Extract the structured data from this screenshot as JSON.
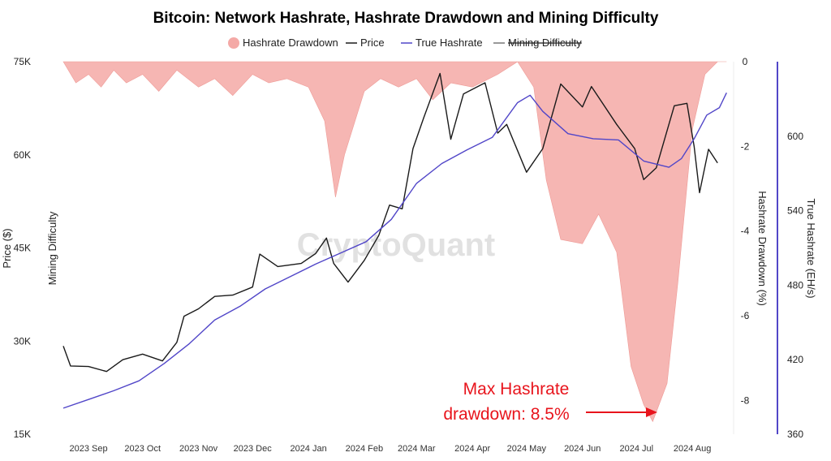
{
  "chart_data": {
    "type": "line",
    "title": "Bitcoin: Network Hashrate, Hashrate Drawdown and Mining Difficulty",
    "watermark": "CryptoQuant",
    "legend": [
      {
        "name": "Hashrate Drawdown",
        "color": "#f4a9a6",
        "shape": "dot"
      },
      {
        "name": "Price",
        "color": "#1a1a1a",
        "shape": "line"
      },
      {
        "name": "True Hashrate",
        "color": "#5146c8",
        "shape": "line"
      },
      {
        "name": "Mining Difficulty",
        "color": "#777777",
        "shape": "line",
        "struck": true
      }
    ],
    "axes": {
      "left_outer": {
        "label": "Price ($)",
        "ticks": [
          "75K",
          "60K",
          "45K",
          "30K",
          "15K"
        ],
        "range": [
          15000,
          75000
        ]
      },
      "left_inner": {
        "label": "Mining Difficulty"
      },
      "right_inner": {
        "label": "Hashrate Drawdown (%)",
        "ticks": [
          "0",
          "-2",
          "-4",
          "-6",
          "-8"
        ],
        "range": [
          -8.8,
          0
        ]
      },
      "right_outer": {
        "label": "True Hashrate (EH/s)",
        "ticks": [
          "600",
          "540",
          "480",
          "420",
          "360"
        ],
        "range": [
          360,
          660
        ]
      },
      "x": {
        "ticks": [
          "2023 Sep",
          "2023 Oct",
          "2023 Nov",
          "2023 Dec",
          "2024 Jan",
          "2024 Feb",
          "2024 Mar",
          "2024 Apr",
          "2024 May",
          "2024 Jun",
          "2024 Jul",
          "2024 Aug"
        ],
        "range": [
          "2023-08-18",
          "2024-08-23"
        ]
      }
    },
    "price": [
      [
        "2023-08-18",
        29200
      ],
      [
        "2023-08-22",
        26000
      ],
      [
        "2023-09-01",
        25900
      ],
      [
        "2023-09-11",
        25100
      ],
      [
        "2023-09-20",
        27000
      ],
      [
        "2023-10-01",
        27900
      ],
      [
        "2023-10-12",
        26800
      ],
      [
        "2023-10-20",
        29800
      ],
      [
        "2023-10-24",
        34000
      ],
      [
        "2023-11-01",
        35200
      ],
      [
        "2023-11-10",
        37200
      ],
      [
        "2023-11-20",
        37400
      ],
      [
        "2023-12-01",
        38700
      ],
      [
        "2023-12-05",
        44000
      ],
      [
        "2023-12-15",
        42000
      ],
      [
        "2023-12-28",
        42500
      ],
      [
        "2024-01-05",
        44100
      ],
      [
        "2024-01-11",
        46600
      ],
      [
        "2024-01-15",
        42500
      ],
      [
        "2024-01-23",
        39500
      ],
      [
        "2024-02-01",
        43000
      ],
      [
        "2024-02-09",
        47000
      ],
      [
        "2024-02-15",
        51900
      ],
      [
        "2024-02-22",
        51300
      ],
      [
        "2024-02-28",
        61000
      ],
      [
        "2024-03-05",
        66000
      ],
      [
        "2024-03-14",
        73100
      ],
      [
        "2024-03-20",
        62500
      ],
      [
        "2024-03-27",
        69800
      ],
      [
        "2024-04-08",
        71600
      ],
      [
        "2024-04-15",
        63500
      ],
      [
        "2024-04-20",
        64900
      ],
      [
        "2024-05-01",
        57200
      ],
      [
        "2024-05-10",
        61000
      ],
      [
        "2024-05-20",
        71400
      ],
      [
        "2024-06-01",
        67700
      ],
      [
        "2024-06-06",
        71000
      ],
      [
        "2024-06-20",
        64900
      ],
      [
        "2024-06-30",
        61000
      ],
      [
        "2024-07-05",
        56000
      ],
      [
        "2024-07-12",
        57900
      ],
      [
        "2024-07-22",
        67900
      ],
      [
        "2024-07-29",
        68300
      ],
      [
        "2024-08-02",
        61300
      ],
      [
        "2024-08-05",
        53900
      ],
      [
        "2024-08-10",
        60900
      ],
      [
        "2024-08-15",
        58700
      ]
    ],
    "true_hashrate": [
      [
        "2023-08-18",
        381
      ],
      [
        "2023-09-01",
        388
      ],
      [
        "2023-09-15",
        395
      ],
      [
        "2023-09-29",
        403
      ],
      [
        "2023-10-13",
        417
      ],
      [
        "2023-10-27",
        433
      ],
      [
        "2023-11-10",
        452
      ],
      [
        "2023-11-24",
        463
      ],
      [
        "2023-12-08",
        477
      ],
      [
        "2023-12-22",
        487
      ],
      [
        "2024-01-05",
        497
      ],
      [
        "2024-01-19",
        506
      ],
      [
        "2024-02-02",
        515
      ],
      [
        "2024-02-16",
        533
      ],
      [
        "2024-03-01",
        562
      ],
      [
        "2024-03-15",
        578
      ],
      [
        "2024-03-29",
        589
      ],
      [
        "2024-04-12",
        599
      ],
      [
        "2024-04-26",
        627
      ],
      [
        "2024-05-03",
        633
      ],
      [
        "2024-05-10",
        620
      ],
      [
        "2024-05-24",
        602
      ],
      [
        "2024-06-07",
        598
      ],
      [
        "2024-06-21",
        597
      ],
      [
        "2024-07-05",
        580
      ],
      [
        "2024-07-19",
        575
      ],
      [
        "2024-07-26",
        582
      ],
      [
        "2024-08-02",
        598
      ],
      [
        "2024-08-09",
        617
      ],
      [
        "2024-08-16",
        623
      ],
      [
        "2024-08-20",
        635
      ]
    ],
    "hashrate_drawdown": [
      [
        "2023-08-18",
        0
      ],
      [
        "2023-08-25",
        -0.5
      ],
      [
        "2023-09-01",
        -0.3
      ],
      [
        "2023-09-08",
        -0.6
      ],
      [
        "2023-09-15",
        -0.2
      ],
      [
        "2023-09-22",
        -0.5
      ],
      [
        "2023-10-01",
        -0.3
      ],
      [
        "2023-10-10",
        -0.7
      ],
      [
        "2023-10-20",
        -0.2
      ],
      [
        "2023-11-01",
        -0.6
      ],
      [
        "2023-11-10",
        -0.4
      ],
      [
        "2023-11-20",
        -0.8
      ],
      [
        "2023-12-01",
        -0.3
      ],
      [
        "2023-12-10",
        -0.5
      ],
      [
        "2023-12-20",
        -0.4
      ],
      [
        "2024-01-01",
        -0.6
      ],
      [
        "2024-01-10",
        -1.4
      ],
      [
        "2024-01-16",
        -3.2
      ],
      [
        "2024-01-21",
        -2.2
      ],
      [
        "2024-02-01",
        -0.7
      ],
      [
        "2024-02-10",
        -0.4
      ],
      [
        "2024-02-20",
        -0.6
      ],
      [
        "2024-03-01",
        -0.4
      ],
      [
        "2024-03-10",
        -0.9
      ],
      [
        "2024-03-20",
        -0.5
      ],
      [
        "2024-04-01",
        -0.6
      ],
      [
        "2024-04-15",
        -0.3
      ],
      [
        "2024-04-26",
        0
      ],
      [
        "2024-05-05",
        -0.6
      ],
      [
        "2024-05-12",
        -2.8
      ],
      [
        "2024-05-20",
        -4.2
      ],
      [
        "2024-06-01",
        -4.3
      ],
      [
        "2024-06-10",
        -3.6
      ],
      [
        "2024-06-20",
        -4.5
      ],
      [
        "2024-06-28",
        -7.2
      ],
      [
        "2024-07-05",
        -8.1
      ],
      [
        "2024-07-10",
        -8.5
      ],
      [
        "2024-07-18",
        -7.6
      ],
      [
        "2024-07-24",
        -5.2
      ],
      [
        "2024-08-01",
        -1.6
      ],
      [
        "2024-08-08",
        -0.3
      ],
      [
        "2024-08-15",
        0
      ],
      [
        "2024-08-20",
        0
      ]
    ],
    "annotation": {
      "text": [
        "Max Hashrate",
        "drawdown: 8.5%"
      ],
      "color": "#e8141c",
      "points_to": [
        "2024-07-10",
        -8.5
      ]
    }
  }
}
